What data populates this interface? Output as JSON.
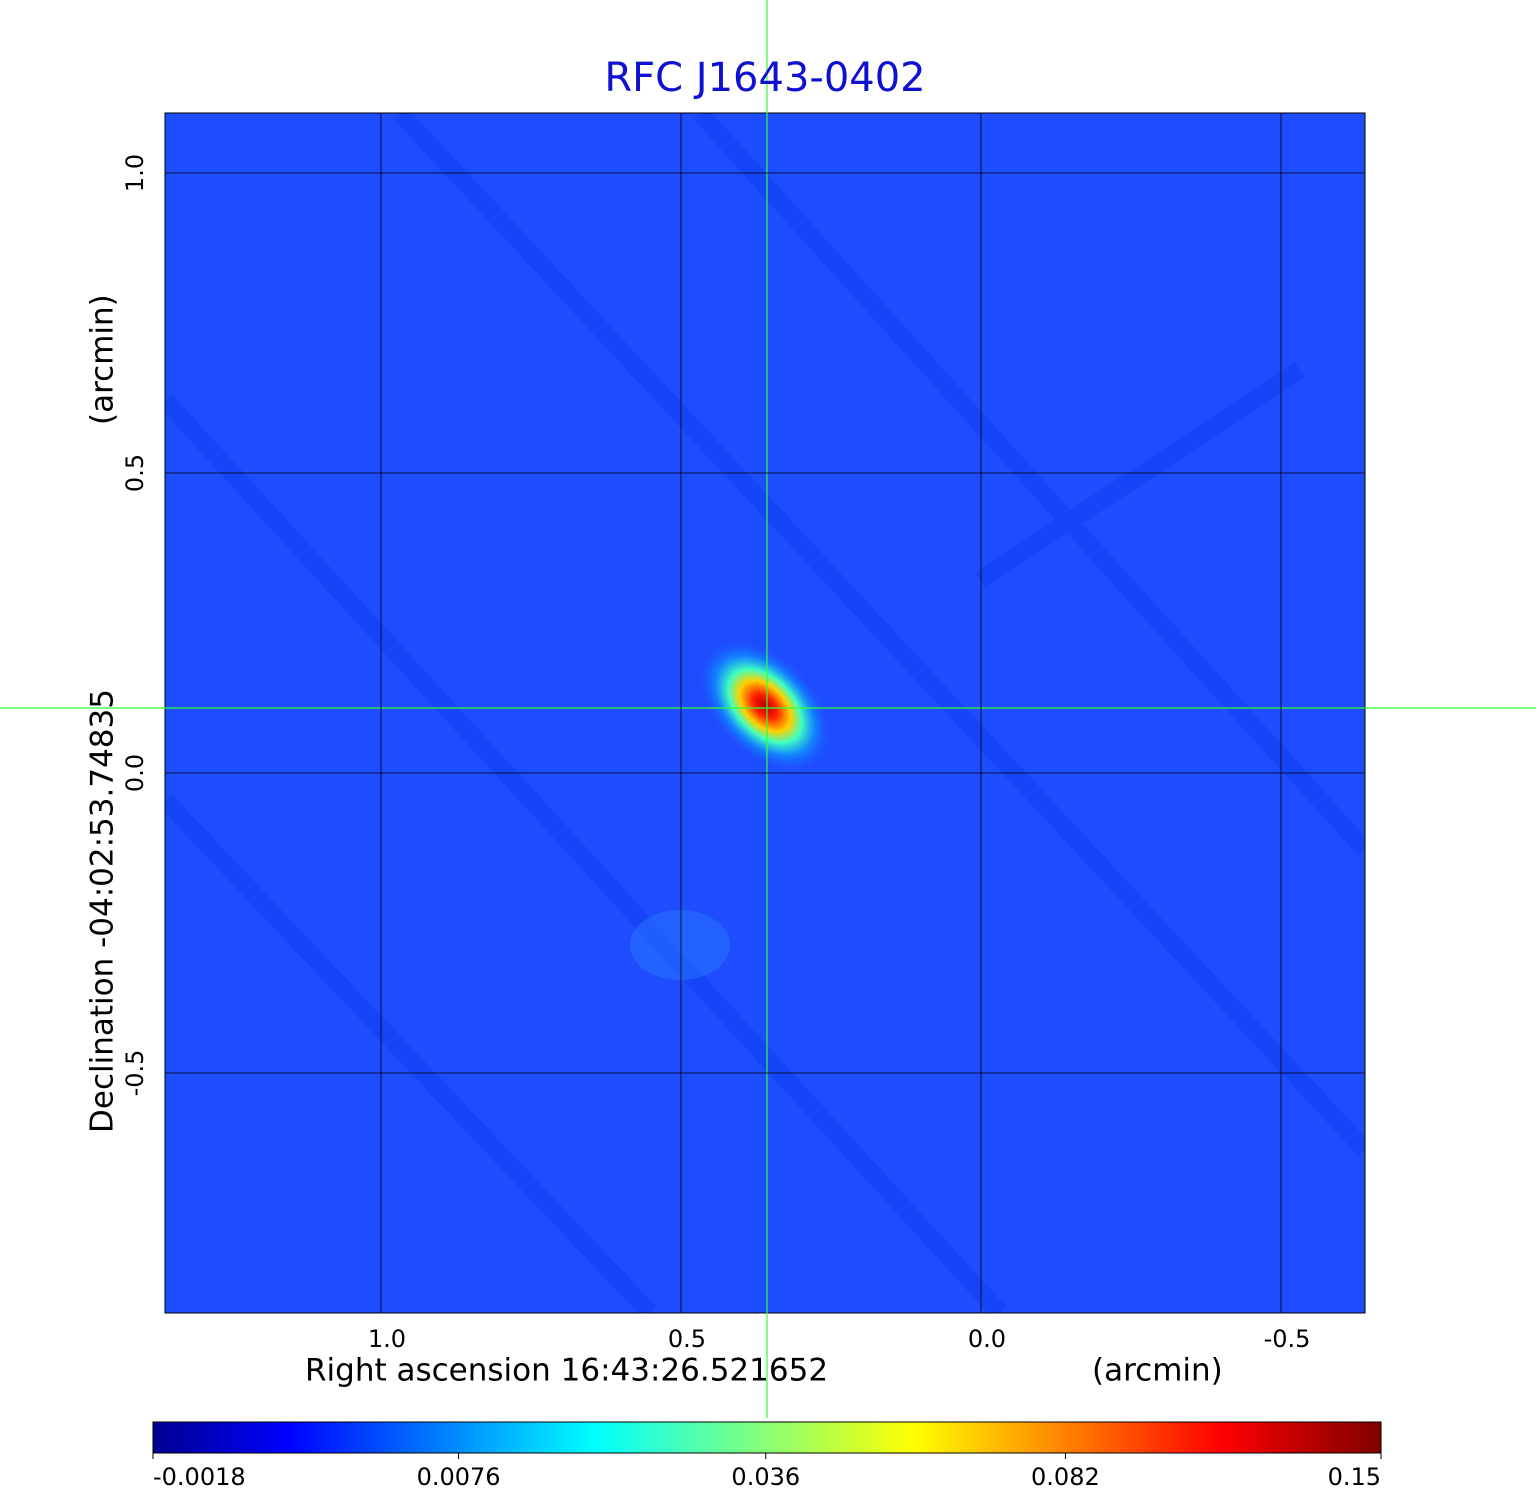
{
  "chart_data": {
    "type": "image",
    "title": "RFC J1643-0402",
    "xlabel": "Right ascension  16:43:26.521652",
    "xunit": "(arcmin)",
    "ylabel": "Declination  -04:02:53.74835",
    "yunit": "(arcmin)",
    "xlim": [
      1.36,
      -0.64
    ],
    "ylim": [
      -0.9,
      1.1
    ],
    "xticks": [
      {
        "value": 1,
        "label": "1.0"
      },
      0.5,
      {
        "value": 0,
        "label": "0.0"
      },
      -0.5
    ],
    "yticks": [
      {
        "value": 1,
        "label": "1.0"
      },
      0.5,
      {
        "value": 0,
        "label": "0.0"
      },
      -0.5
    ],
    "grid": true,
    "colorbar": {
      "scale": "sqrt",
      "lim": [
        -0.0018,
        0.15
      ],
      "ticks": [
        -0.0018,
        0.0076,
        0.036,
        0.082,
        0.15
      ]
    }
  }
}
